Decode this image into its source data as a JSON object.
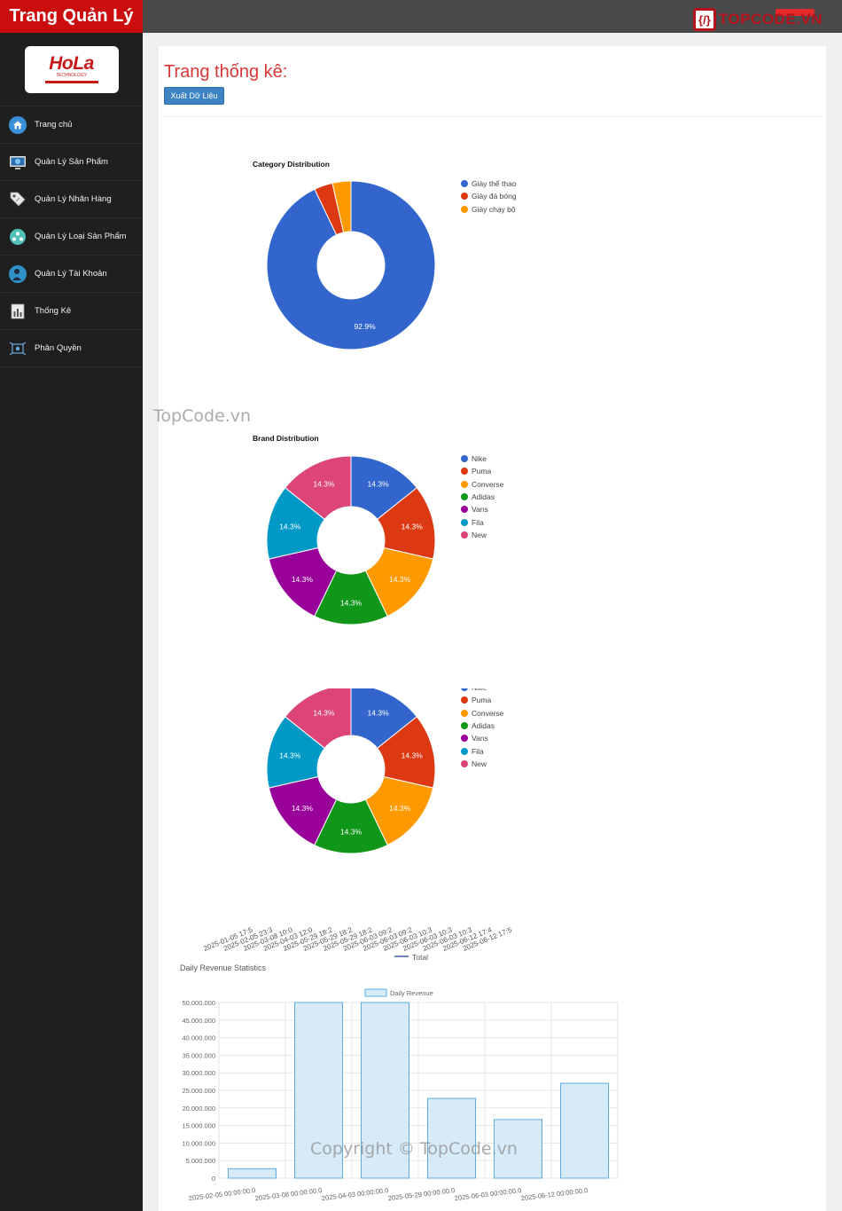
{
  "app": {
    "title": "Trang Quản Lý"
  },
  "topcode": {
    "brand": "TOPCODE.VN",
    "mark": "{/}"
  },
  "logo": {
    "main": "HoLa",
    "sub": "TECHNOLOGY"
  },
  "sidebar": {
    "items": [
      {
        "label": "Trang chủ",
        "icon": "home-icon"
      },
      {
        "label": "Quản Lý Sản Phẩm",
        "icon": "product-icon"
      },
      {
        "label": "Quản Lý Nhãn Hàng",
        "icon": "tag-icon"
      },
      {
        "label": "Quản Lý Loại Sản Phẩm",
        "icon": "category-icon"
      },
      {
        "label": "Quản Lý Tài Khoản",
        "icon": "account-icon"
      },
      {
        "label": "Thống Kê",
        "icon": "stats-icon"
      },
      {
        "label": "Phân Quyền",
        "icon": "permission-icon"
      }
    ]
  },
  "main": {
    "title": "Trang thống kê:",
    "export_label": "Xuất Dữ Liệu"
  },
  "watermarks": {
    "top": "TopCode.vn",
    "bottom": "Copyright © TopCode.vn"
  },
  "chart_data": [
    {
      "type": "pie",
      "title": "Category Distribution",
      "labels": [
        "Giày thể thao",
        "Giày đá bóng",
        "Giày chạy bộ"
      ],
      "values": [
        92.9,
        3.55,
        3.55
      ],
      "data_labels": [
        "92.9%",
        "",
        ""
      ],
      "colors": [
        "#3366cc",
        "#dc3912",
        "#ff9900"
      ]
    },
    {
      "type": "pie",
      "title": "Brand Distribution",
      "labels": [
        "Nike",
        "Puma",
        "Converse",
        "Adidas",
        "Vans",
        "Fila",
        "New"
      ],
      "values": [
        14.3,
        14.3,
        14.3,
        14.3,
        14.3,
        14.3,
        14.3
      ],
      "data_labels": [
        "14.3%",
        "14.3%",
        "14.3%",
        "14.3%",
        "14.3%",
        "14.3%",
        "14.3%"
      ],
      "colors": [
        "#3366cc",
        "#dc3912",
        "#ff9900",
        "#109618",
        "#990099",
        "#0099c6",
        "#dd4477"
      ]
    },
    {
      "type": "pie",
      "title": "",
      "labels": [
        "Nike",
        "Puma",
        "Converse",
        "Adidas",
        "Vans",
        "Fila",
        "New"
      ],
      "values": [
        14.3,
        14.3,
        14.3,
        14.3,
        14.3,
        14.3,
        14.3
      ],
      "data_labels": [
        "14.3%",
        "14.3%",
        "14.3%",
        "14.3%",
        "14.3%",
        "14.3%",
        "14.3%"
      ],
      "colors": [
        "#3366cc",
        "#dc3912",
        "#ff9900",
        "#109618",
        "#990099",
        "#0099c6",
        "#dd4477"
      ]
    },
    {
      "type": "line",
      "title": "",
      "legend": "Total",
      "categories": [
        "2025-01-05 17:5",
        "2025-02-05 23:3",
        "2025-03-08 10:0",
        "2025-04-03 12:0",
        "2025-05-29 18:2",
        "2025-05-29 18:2",
        "2025-05-29 18:2",
        "2025-06-03 09:2",
        "2025-06-03 09:2",
        "2025-06-03 10:3",
        "2025-06-03 10:3",
        "2025-06-03 10:3",
        "2025-06-12 17:4",
        "2025-06-12 17:5"
      ]
    },
    {
      "type": "bar",
      "title": "Daily Revenue Statistics",
      "legend": "Daily Revenue",
      "categories": [
        "2025-02-05 00:00:00.0",
        "2025-03-08 00:00:00.0",
        "2025-04-03 00:00:00.0",
        "2025-05-29 00:00:00.0",
        "2025-06-03 00:00:00.0",
        "2025-06-12 00:00:00.0"
      ],
      "values": [
        2700000,
        50000000,
        50000000,
        22700000,
        16700000,
        27000000
      ],
      "ylim": [
        0,
        50000000
      ],
      "yticks": [
        "0",
        "5.000.000",
        "10.000.000",
        "15.000.000",
        "20.000.000",
        "25.000.000",
        "30.000.000",
        "35.000.000",
        "40.000.000",
        "45.000.000",
        "50.000.000"
      ],
      "fill": "#d6eaf8",
      "stroke": "#5dade2"
    }
  ]
}
